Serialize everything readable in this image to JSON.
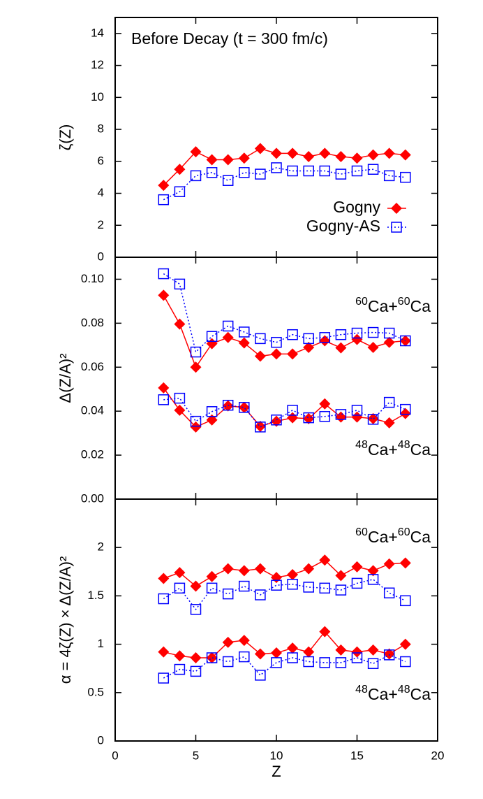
{
  "chart_data": [
    {
      "type": "line",
      "title": "Before Decay (t = 300 fm/c)",
      "y_label": "ζ(Z)",
      "x": [
        3,
        4,
        5,
        6,
        7,
        8,
        9,
        10,
        11,
        12,
        13,
        14,
        15,
        16,
        17,
        18
      ],
      "xlim": [
        0,
        20
      ],
      "xticks": [
        0,
        5,
        10,
        15,
        20
      ],
      "xtick_labels": false,
      "ylim": [
        0,
        15
      ],
      "yticks": [
        0,
        2,
        4,
        6,
        8,
        10,
        12,
        14
      ],
      "legend": "lower right",
      "series": [
        {
          "name": "Gogny",
          "color": "#ff0000",
          "marker": "diamond",
          "line": "solid",
          "values": [
            4.5,
            5.5,
            6.6,
            6.1,
            6.1,
            6.2,
            6.8,
            6.5,
            6.5,
            6.3,
            6.5,
            6.3,
            6.2,
            6.4,
            6.5,
            6.4
          ]
        },
        {
          "name": "Gogny-AS",
          "color": "#0000ff",
          "marker": "square",
          "line": "dotted",
          "values": [
            3.6,
            4.1,
            5.1,
            5.3,
            4.8,
            5.3,
            5.2,
            5.6,
            5.4,
            5.4,
            5.4,
            5.2,
            5.4,
            5.5,
            5.1,
            5.0
          ]
        }
      ]
    },
    {
      "type": "line",
      "y_label": "Δ(Z/A)²",
      "x": [
        3,
        4,
        5,
        6,
        7,
        8,
        9,
        10,
        11,
        12,
        13,
        14,
        15,
        16,
        17,
        18
      ],
      "xlim": [
        0,
        20
      ],
      "xticks": [
        0,
        5,
        10,
        15,
        20
      ],
      "xtick_labels": false,
      "ylim": [
        0,
        0.11
      ],
      "yticks": [
        {
          "value": 0,
          "label": "0.00"
        },
        {
          "value": 0.02,
          "label": "0.02"
        },
        {
          "value": 0.04,
          "label": "0.04"
        },
        {
          "value": 0.06,
          "label": "0.06"
        },
        {
          "value": 0.08,
          "label": "0.08"
        },
        {
          "value": 0.1,
          "label": "0.10"
        }
      ],
      "annotations": [
        [
          {
            "text": "60",
            "sup": true
          },
          {
            "text": "Ca+"
          },
          {
            "text": "60",
            "sup": true
          },
          {
            "text": "Ca"
          }
        ],
        [
          {
            "text": "48",
            "sup": true
          },
          {
            "text": "Ca+"
          },
          {
            "text": "48",
            "sup": true
          },
          {
            "text": "Ca"
          }
        ]
      ],
      "series": [
        {
          "color": "#ff0000",
          "marker": "diamond",
          "line": "solid",
          "values": [
            0.0927,
            0.0796,
            0.06,
            0.0707,
            0.0735,
            0.071,
            0.065,
            0.066,
            0.066,
            0.069,
            0.072,
            0.0688,
            0.0726,
            0.069,
            0.0713,
            0.072
          ]
        },
        {
          "color": "#0000ff",
          "marker": "square",
          "line": "dotted",
          "values": [
            0.1025,
            0.0978,
            0.0669,
            0.074,
            0.0787,
            0.076,
            0.073,
            0.0713,
            0.0748,
            0.073,
            0.0735,
            0.0748,
            0.0755,
            0.0758,
            0.0755,
            0.072
          ]
        },
        {
          "color": "#ff0000",
          "marker": "diamond",
          "line": "solid",
          "values": [
            0.0506,
            0.0404,
            0.0328,
            0.036,
            0.0424,
            0.0417,
            0.0331,
            0.0354,
            0.037,
            0.0366,
            0.0433,
            0.0373,
            0.0373,
            0.0366,
            0.0347,
            0.0389
          ]
        },
        {
          "color": "#0000ff",
          "marker": "square",
          "line": "dotted",
          "values": [
            0.0452,
            0.0459,
            0.0354,
            0.0398,
            0.0427,
            0.0417,
            0.0328,
            0.036,
            0.0404,
            0.037,
            0.0376,
            0.0385,
            0.0404,
            0.0363,
            0.044,
            0.0408
          ]
        }
      ]
    },
    {
      "type": "line",
      "y_label": "α = 4ζ(Z) × Δ(Z/A)²",
      "x_label": "Z",
      "x": [
        3,
        4,
        5,
        6,
        7,
        8,
        9,
        10,
        11,
        12,
        13,
        14,
        15,
        16,
        17,
        18
      ],
      "xlim": [
        0,
        20
      ],
      "xticks": [
        0,
        5,
        10,
        15,
        20
      ],
      "xtick_labels": true,
      "ylim": [
        0,
        2.5
      ],
      "yticks": [
        0,
        0.5,
        1,
        1.5,
        2
      ],
      "annotations": [
        [
          {
            "text": "60",
            "sup": true
          },
          {
            "text": "Ca+"
          },
          {
            "text": "60",
            "sup": true
          },
          {
            "text": "Ca"
          }
        ],
        [
          {
            "text": "48",
            "sup": true
          },
          {
            "text": "Ca+"
          },
          {
            "text": "48",
            "sup": true
          },
          {
            "text": "Ca"
          }
        ]
      ],
      "series": [
        {
          "color": "#ff0000",
          "marker": "diamond",
          "line": "solid",
          "values": [
            1.68,
            1.74,
            1.6,
            1.7,
            1.78,
            1.76,
            1.78,
            1.69,
            1.72,
            1.78,
            1.87,
            1.71,
            1.8,
            1.76,
            1.83,
            1.84
          ]
        },
        {
          "color": "#0000ff",
          "marker": "square",
          "line": "dotted",
          "values": [
            1.47,
            1.58,
            1.36,
            1.58,
            1.52,
            1.6,
            1.51,
            1.61,
            1.62,
            1.59,
            1.58,
            1.56,
            1.63,
            1.67,
            1.53,
            1.45
          ]
        },
        {
          "color": "#ff0000",
          "marker": "diamond",
          "line": "solid",
          "values": [
            0.92,
            0.88,
            0.86,
            0.86,
            1.02,
            1.04,
            0.9,
            0.91,
            0.96,
            0.92,
            1.13,
            0.94,
            0.92,
            0.94,
            0.9,
            1.0
          ]
        },
        {
          "color": "#0000ff",
          "marker": "square",
          "line": "dotted",
          "values": [
            0.65,
            0.74,
            0.72,
            0.86,
            0.82,
            0.87,
            0.68,
            0.81,
            0.86,
            0.82,
            0.81,
            0.81,
            0.86,
            0.8,
            0.89,
            0.82
          ]
        }
      ]
    }
  ]
}
